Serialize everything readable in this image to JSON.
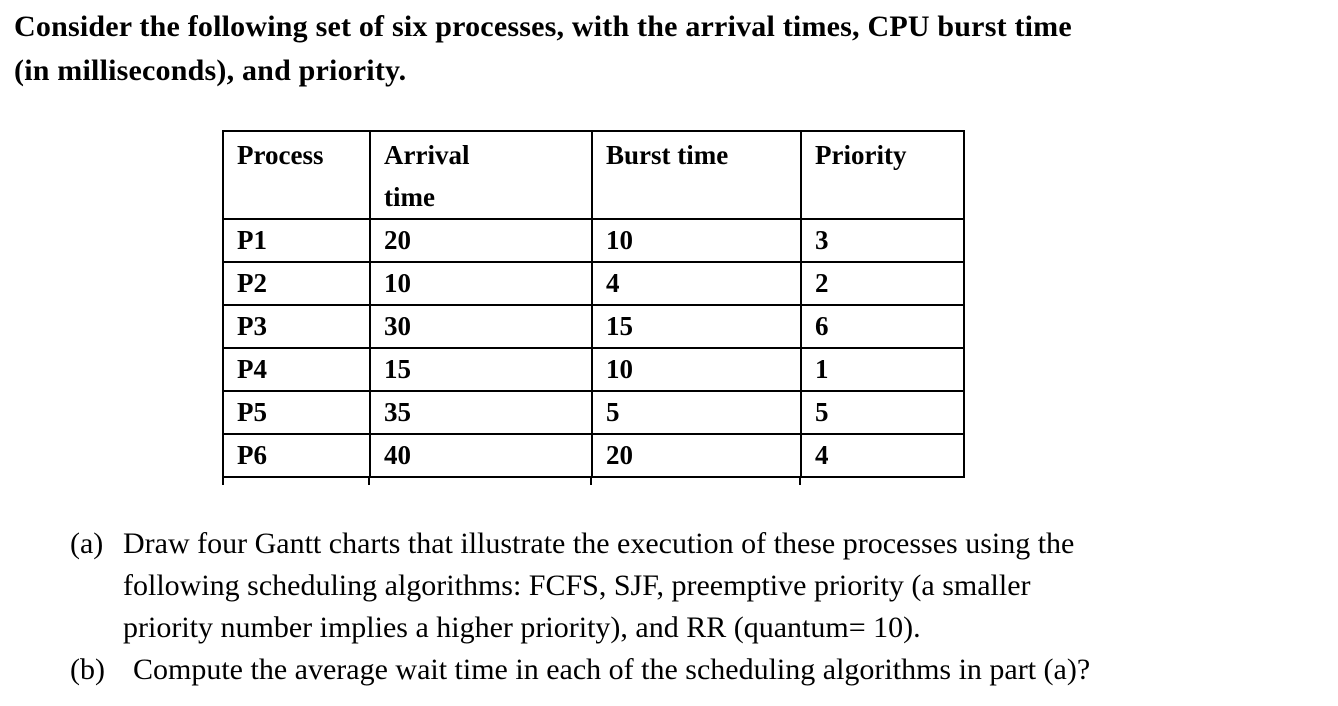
{
  "title": {
    "line1": "Consider the following set of six processes, with the arrival times, CPU burst time",
    "line2": "(in milliseconds), and priority."
  },
  "process_table": {
    "headers": {
      "process": "Process",
      "arrival_line1": "Arrival",
      "arrival_line2": "time",
      "burst": "Burst time",
      "priority": "Priority"
    },
    "rows": [
      {
        "process": "P1",
        "arrival": "20",
        "burst": "10",
        "priority": "3"
      },
      {
        "process": "P2",
        "arrival": "10",
        "burst": "4",
        "priority": "2"
      },
      {
        "process": "P3",
        "arrival": "30",
        "burst": "15",
        "priority": "6"
      },
      {
        "process": "P4",
        "arrival": "15",
        "burst": "10",
        "priority": "1"
      },
      {
        "process": "P5",
        "arrival": "35",
        "burst": "5",
        "priority": "5"
      },
      {
        "process": "P6",
        "arrival": "40",
        "burst": "20",
        "priority": "4"
      }
    ]
  },
  "questions": {
    "a": {
      "label": "(a)",
      "lines": [
        "Draw four Gantt charts that illustrate the execution of these processes using the",
        "following scheduling algorithms: FCFS, SJF, preemptive priority (a smaller",
        "priority number implies a higher priority), and RR (quantum= 10)."
      ]
    },
    "b": {
      "label": "(b)",
      "lines": [
        "Compute the average wait time in each of the scheduling algorithms in part (a)?"
      ]
    }
  }
}
